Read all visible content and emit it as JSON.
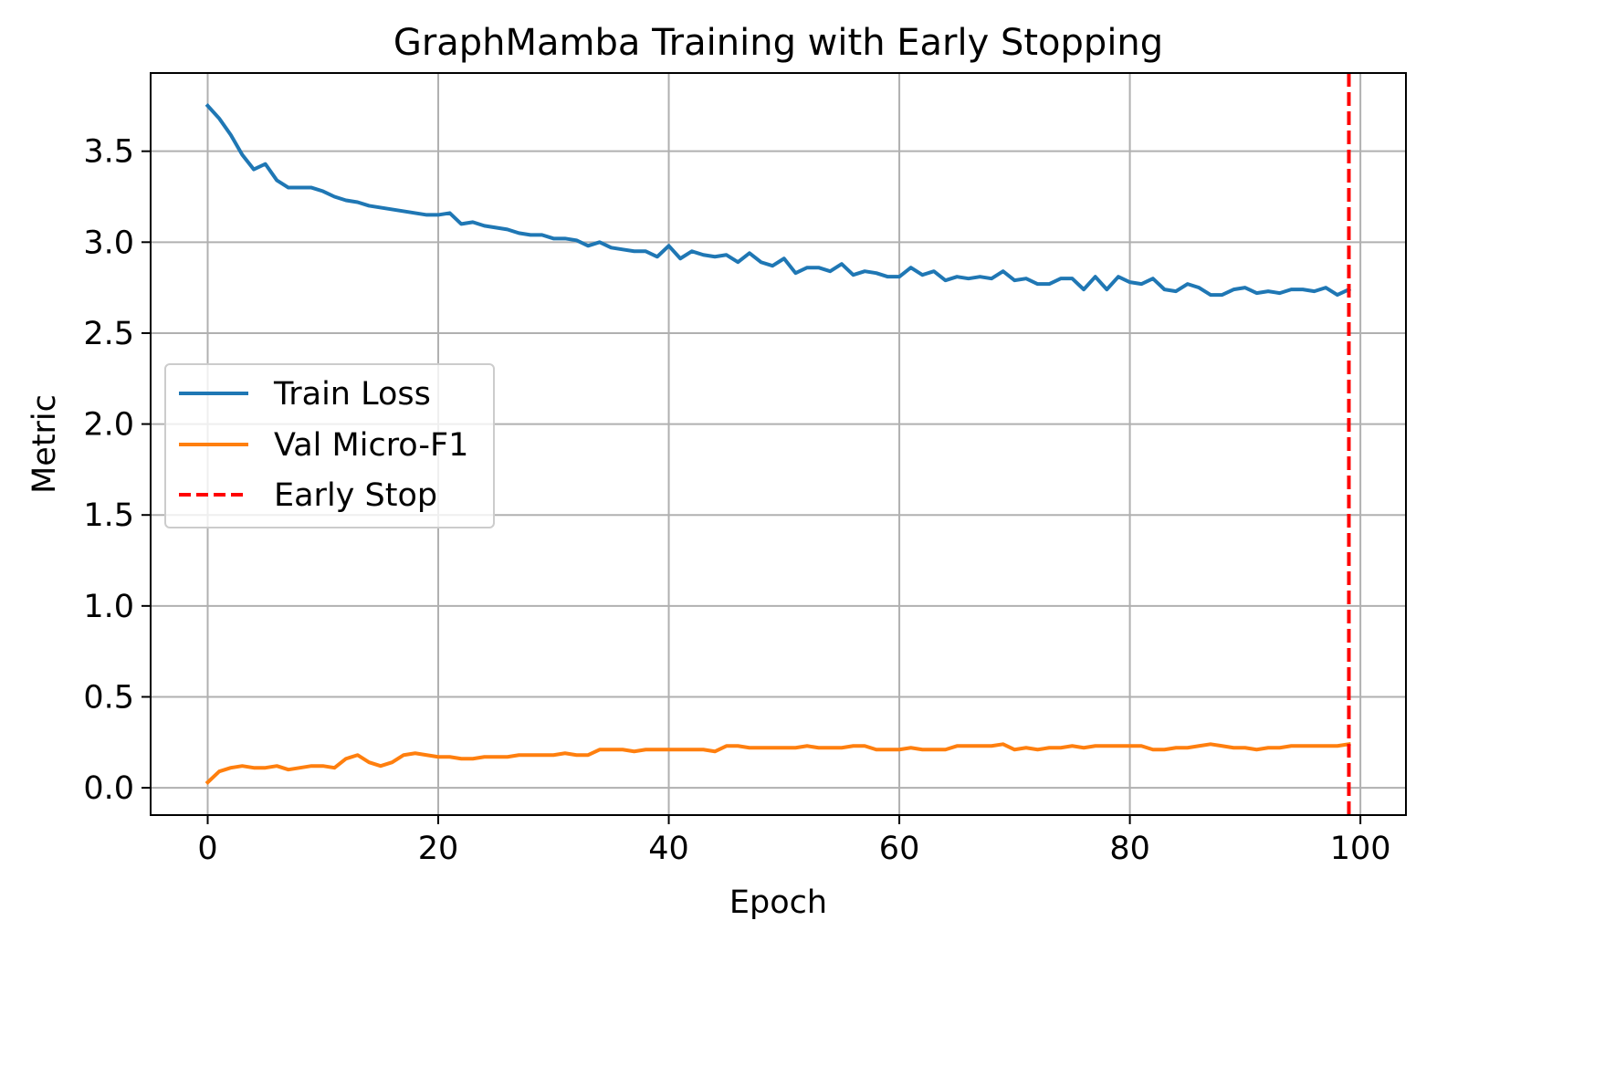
{
  "chart_data": {
    "type": "line",
    "title": "GraphMamba Training with Early Stopping",
    "xlabel": "Epoch",
    "ylabel": "Metric",
    "xlim": [
      -4.95,
      103.95
    ],
    "ylim": [
      -0.15,
      3.93
    ],
    "xticks": [
      0,
      20,
      40,
      60,
      80,
      100
    ],
    "yticks": [
      0.0,
      0.5,
      1.0,
      1.5,
      2.0,
      2.5,
      3.0,
      3.5
    ],
    "xtick_labels": [
      "0",
      "20",
      "40",
      "60",
      "80",
      "100"
    ],
    "ytick_labels": [
      "0.0",
      "0.5",
      "1.0",
      "1.5",
      "2.0",
      "2.5",
      "3.0",
      "3.5"
    ],
    "grid": true,
    "legend_position": "center-left",
    "series": [
      {
        "name": "Train Loss",
        "color": "#1f77b4",
        "values": [
          3.75,
          3.68,
          3.59,
          3.48,
          3.4,
          3.43,
          3.34,
          3.3,
          3.3,
          3.3,
          3.28,
          3.25,
          3.23,
          3.22,
          3.2,
          3.19,
          3.18,
          3.17,
          3.16,
          3.15,
          3.15,
          3.16,
          3.1,
          3.11,
          3.09,
          3.08,
          3.07,
          3.05,
          3.04,
          3.04,
          3.02,
          3.02,
          3.01,
          2.98,
          3.0,
          2.97,
          2.96,
          2.95,
          2.95,
          2.92,
          2.98,
          2.91,
          2.95,
          2.93,
          2.92,
          2.93,
          2.89,
          2.94,
          2.89,
          2.87,
          2.91,
          2.83,
          2.86,
          2.86,
          2.84,
          2.88,
          2.82,
          2.84,
          2.83,
          2.81,
          2.81,
          2.86,
          2.82,
          2.84,
          2.79,
          2.81,
          2.8,
          2.81,
          2.8,
          2.84,
          2.79,
          2.8,
          2.77,
          2.77,
          2.8,
          2.8,
          2.74,
          2.81,
          2.74,
          2.81,
          2.78,
          2.77,
          2.8,
          2.74,
          2.73,
          2.77,
          2.75,
          2.71,
          2.71,
          2.74,
          2.75,
          2.72,
          2.73,
          2.72,
          2.74,
          2.74,
          2.73,
          2.75,
          2.71,
          2.74
        ]
      },
      {
        "name": "Val Micro-F1",
        "color": "#ff7f0e",
        "values": [
          0.03,
          0.09,
          0.11,
          0.12,
          0.11,
          0.11,
          0.12,
          0.1,
          0.11,
          0.12,
          0.12,
          0.11,
          0.16,
          0.18,
          0.14,
          0.12,
          0.14,
          0.18,
          0.19,
          0.18,
          0.17,
          0.17,
          0.16,
          0.16,
          0.17,
          0.17,
          0.17,
          0.18,
          0.18,
          0.18,
          0.18,
          0.19,
          0.18,
          0.18,
          0.21,
          0.21,
          0.21,
          0.2,
          0.21,
          0.21,
          0.21,
          0.21,
          0.21,
          0.21,
          0.2,
          0.23,
          0.23,
          0.22,
          0.22,
          0.22,
          0.22,
          0.22,
          0.23,
          0.22,
          0.22,
          0.22,
          0.23,
          0.23,
          0.21,
          0.21,
          0.21,
          0.22,
          0.21,
          0.21,
          0.21,
          0.23,
          0.23,
          0.23,
          0.23,
          0.24,
          0.21,
          0.22,
          0.21,
          0.22,
          0.22,
          0.23,
          0.22,
          0.23,
          0.23,
          0.23,
          0.23,
          0.23,
          0.21,
          0.21,
          0.22,
          0.22,
          0.23,
          0.24,
          0.23,
          0.22,
          0.22,
          0.21,
          0.22,
          0.22,
          0.23,
          0.23,
          0.23,
          0.23,
          0.23,
          0.24
        ]
      }
    ],
    "vline": {
      "name": "Early Stop",
      "x": 99,
      "color": "#ff0000",
      "style": "dashed"
    }
  }
}
